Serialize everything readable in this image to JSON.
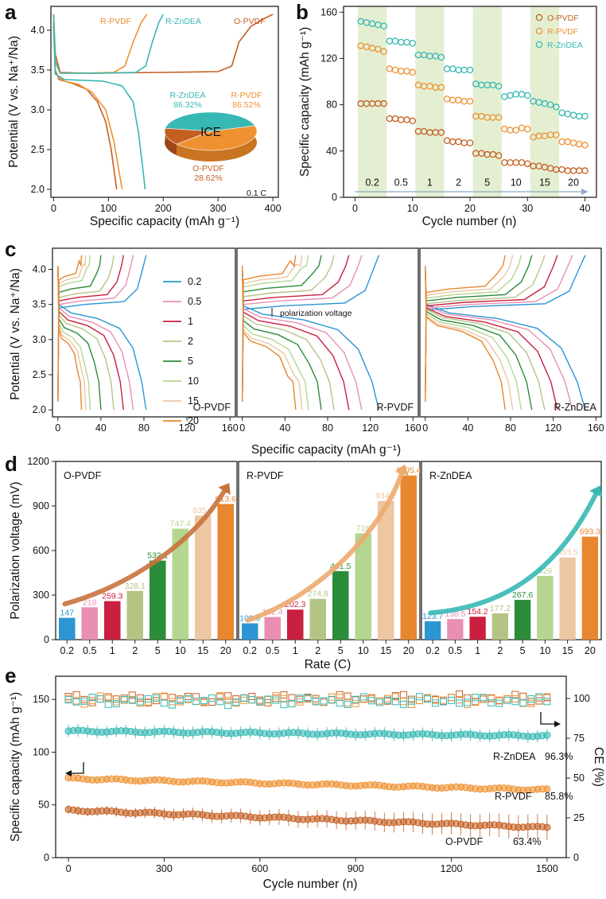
{
  "colors": {
    "o": "#c45f22",
    "r": "#ef9131",
    "z": "#37b8b4",
    "band": "#e4efd2",
    "rate": [
      "#2c95d4",
      "#e88fb3",
      "#c9203f",
      "#b4c485",
      "#2b8c3a",
      "#b4d690",
      "#edc6a2",
      "#e98630",
      "#c3c2e7"
    ]
  },
  "panels": {
    "a": "a",
    "b": "b",
    "c": "c",
    "d": "d",
    "e": "e"
  },
  "chart_data": [
    {
      "id": "a",
      "type": "line",
      "xlabel": "Specific capacity (mAh g⁻¹)",
      "ylabel": "Potential (V vs. Na⁺/Na)",
      "xlim": [
        -5,
        410
      ],
      "ylim": [
        1.9,
        4.3
      ],
      "xticks": [
        0,
        100,
        200,
        300,
        400
      ],
      "yticks": [
        2.0,
        2.5,
        3.0,
        3.5,
        4.0
      ],
      "xticklabels": [
        "0",
        "100",
        "200",
        "300",
        "400"
      ],
      "yticklabels": [
        "2.0",
        "2.5",
        "3.0",
        "3.5",
        "4.0"
      ],
      "series": [
        {
          "name": "O-PVDF",
          "label": "O-PVDF",
          "color": "#c45f22",
          "charge": [
            [
              0,
              4.2
            ],
            [
              3,
              3.7
            ],
            [
              12,
              3.47
            ],
            [
              60,
              3.46
            ],
            [
              200,
              3.47
            ],
            [
              300,
              3.48
            ],
            [
              325,
              3.55
            ],
            [
              338,
              3.85
            ],
            [
              360,
              4.05
            ],
            [
              385,
              4.15
            ],
            [
              400,
              4.2
            ]
          ],
          "discharge": [
            [
              0,
              4.1
            ],
            [
              3,
              3.5
            ],
            [
              10,
              3.38
            ],
            [
              35,
              3.33
            ],
            [
              60,
              3.26
            ],
            [
              80,
              3.1
            ],
            [
              95,
              2.85
            ],
            [
              105,
              2.5
            ],
            [
              115,
              2.0
            ]
          ]
        },
        {
          "name": "R-PVDF",
          "label": "R-PVDF",
          "color": "#ef9131",
          "charge": [
            [
              0,
              4.2
            ],
            [
              3,
              3.62
            ],
            [
              12,
              3.46
            ],
            [
              60,
              3.46
            ],
            [
              110,
              3.47
            ],
            [
              130,
              3.55
            ],
            [
              145,
              3.85
            ],
            [
              160,
              4.1
            ],
            [
              170,
              4.2
            ]
          ],
          "discharge": [
            [
              0,
              4.05
            ],
            [
              3,
              3.45
            ],
            [
              20,
              3.36
            ],
            [
              45,
              3.32
            ],
            [
              70,
              3.22
            ],
            [
              95,
              3.0
            ],
            [
              110,
              2.6
            ],
            [
              120,
              2.2
            ],
            [
              125,
              2.0
            ]
          ]
        },
        {
          "name": "R-ZnDEA",
          "label": "R-ZnDEA",
          "color": "#37b8b4",
          "charge": [
            [
              0,
              4.2
            ],
            [
              3,
              3.6
            ],
            [
              12,
              3.46
            ],
            [
              80,
              3.46
            ],
            [
              150,
              3.47
            ],
            [
              168,
              3.55
            ],
            [
              180,
              3.85
            ],
            [
              192,
              4.1
            ],
            [
              200,
              4.2
            ]
          ],
          "discharge": [
            [
              0,
              4.05
            ],
            [
              3,
              3.45
            ],
            [
              20,
              3.38
            ],
            [
              90,
              3.36
            ],
            [
              125,
              3.3
            ],
            [
              145,
              3.1
            ],
            [
              155,
              2.7
            ],
            [
              162,
              2.3
            ],
            [
              167,
              2.0
            ]
          ]
        }
      ],
      "pie": {
        "title": "ICE",
        "slices": [
          {
            "name": "R-ZnDEA",
            "value": 86.32,
            "label": "R-ZnDEA",
            "pct": "86.32%",
            "color": "#37b8b4"
          },
          {
            "name": "R-PVDF",
            "value": 86.52,
            "label": "R-PVDF",
            "pct": "86.52%",
            "color": "#ef9131"
          },
          {
            "name": "O-PVDF",
            "value": 28.62,
            "label": "O-PVDF",
            "pct": "28.62%",
            "color": "#c45f22"
          }
        ]
      },
      "annotation": "0.1 C"
    },
    {
      "id": "b",
      "type": "scatter",
      "xlabel": "Cycle number (n)",
      "ylabel": "Specific capacity (mAh g⁻¹)",
      "xlim": [
        -2,
        42
      ],
      "ylim": [
        0,
        165
      ],
      "xticks": [
        0,
        10,
        20,
        30,
        40
      ],
      "yticks": [
        0,
        40,
        80,
        120,
        160
      ],
      "xticklabels": [
        "0",
        "10",
        "20",
        "30",
        "40"
      ],
      "yticklabels": [
        "0",
        "40",
        "80",
        "120",
        "160"
      ],
      "rates": [
        "0.2",
        "0.5",
        "1",
        "2",
        "5",
        "10",
        "15",
        "20"
      ],
      "bands": [
        [
          0.5,
          5.5
        ],
        [
          10.5,
          15.5
        ],
        [
          20.5,
          25.5
        ],
        [
          30.5,
          35.5
        ]
      ],
      "series": [
        {
          "name": "O-PVDF",
          "label": "O-PVDF",
          "color": "#c45f22",
          "blocks": [
            [
              81,
              81,
              81,
              81,
              81
            ],
            [
              68,
              68,
              67,
              67,
              66
            ],
            [
              57,
              57,
              56,
              56,
              56
            ],
            [
              49,
              48,
              48,
              47,
              47
            ],
            [
              38,
              38,
              37,
              37,
              36
            ],
            [
              30,
              30,
              30,
              30,
              29
            ],
            [
              27,
              27,
              26,
              25,
              24
            ],
            [
              24,
              23,
              23,
              23,
              23
            ]
          ]
        },
        {
          "name": "R-PVDF",
          "label": "R-PVDF",
          "color": "#ef9131",
          "blocks": [
            [
              131,
              130,
              129,
              128,
              126
            ],
            [
              111,
              110,
              109,
              109,
              108
            ],
            [
              97,
              96,
              96,
              95,
              95
            ],
            [
              85,
              84,
              84,
              83,
              83
            ],
            [
              70,
              70,
              69,
              69,
              69
            ],
            [
              59,
              58,
              58,
              60,
              59
            ],
            [
              52,
              53,
              53,
              54,
              54
            ],
            [
              48,
              48,
              47,
              46,
              45
            ]
          ]
        },
        {
          "name": "R-ZnDEA",
          "label": "R-ZnDEA",
          "color": "#37b8b4",
          "blocks": [
            [
              152,
              151,
              150,
              149,
              148
            ],
            [
              135,
              135,
              134,
              134,
              133
            ],
            [
              123,
              123,
              122,
              122,
              121
            ],
            [
              111,
              111,
              110,
              110,
              110
            ],
            [
              98,
              97,
              97,
              97,
              96
            ],
            [
              87,
              88,
              89,
              89,
              88
            ],
            [
              83,
              82,
              81,
              80,
              78
            ],
            [
              73,
              72,
              71,
              70,
              70
            ]
          ]
        }
      ]
    },
    {
      "id": "c",
      "type": "line",
      "xlabel": "Specific capacity (mAh g⁻¹)",
      "ylabel": "Potential (V vs. Na⁺/Na)",
      "xlim": [
        -5,
        165
      ],
      "ylim": [
        1.9,
        4.3
      ],
      "xticks": [
        0,
        40,
        80,
        120,
        160
      ],
      "yticks": [
        2.0,
        2.5,
        3.0,
        3.5,
        4.0
      ],
      "xticklabels": [
        "0",
        "40",
        "80",
        "120",
        "160"
      ],
      "yticklabels": [
        "2.0",
        "2.5",
        "3.0",
        "3.5",
        "4.0"
      ],
      "rates": [
        "0.2",
        "0.5",
        "1",
        "2",
        "5",
        "10",
        "15",
        "20"
      ],
      "annotation": "polarization voltage",
      "subplots": [
        {
          "name": "O-PVDF",
          "label": "O-PVDF",
          "caps": [
            82,
            70,
            61,
            52,
            40,
            30,
            26,
            22
          ],
          "platD": [
            3.38,
            3.33,
            3.28,
            3.23,
            3.17,
            3.11,
            3.06,
            3.02
          ],
          "platC": [
            3.5,
            3.55,
            3.6,
            3.65,
            3.72,
            3.8,
            3.85,
            3.9
          ]
        },
        {
          "name": "R-PVDF",
          "label": "R-PVDF",
          "caps": [
            128,
            112,
            100,
            86,
            74,
            62,
            56,
            50
          ],
          "platD": [
            3.36,
            3.32,
            3.27,
            3.22,
            3.15,
            3.08,
            3.02,
            2.98
          ],
          "platC": [
            3.48,
            3.55,
            3.6,
            3.66,
            3.73,
            3.8,
            3.85,
            3.9
          ]
        },
        {
          "name": "R-ZnDEA",
          "label": "R-ZnDEA",
          "caps": [
            150,
            138,
            124,
            112,
            100,
            90,
            82,
            75
          ],
          "platD": [
            3.38,
            3.36,
            3.33,
            3.31,
            3.28,
            3.25,
            3.22,
            3.2
          ],
          "platC": [
            3.47,
            3.5,
            3.53,
            3.56,
            3.6,
            3.64,
            3.68,
            3.72
          ]
        }
      ]
    },
    {
      "id": "d",
      "type": "bar",
      "xlabel": "Rate (C)",
      "ylabel": "Polarization voltage (mV)",
      "ylim": [
        0,
        1200
      ],
      "yticks": [
        0,
        300,
        600,
        900,
        1200
      ],
      "yticklabels": [
        "0",
        "300",
        "600",
        "900",
        "1200"
      ],
      "categories": [
        "0.2",
        "0.5",
        "1",
        "2",
        "5",
        "10",
        "15",
        "20"
      ],
      "series": [
        {
          "name": "O-PVDF",
          "label": "O-PVDF",
          "values": [
            147,
            218,
            259.3,
            328.1,
            532.1,
            747.4,
            835.4,
            913.6
          ],
          "valueLabels": [
            "147",
            "218",
            "259.3",
            "328.1",
            "532.1",
            "747.4",
            "835.4",
            "913.6"
          ]
        },
        {
          "name": "R-PVDF",
          "label": "R-PVDF",
          "values": [
            109.6,
            152.4,
            202.3,
            274.8,
            461.5,
            716,
            934.2,
            1105.4
          ],
          "valueLabels": [
            "109.6",
            "152.4",
            "202.3",
            "274.8",
            "461.5",
            "716",
            "934.2",
            "1105.4"
          ]
        },
        {
          "name": "R-ZnDEA",
          "label": "R-ZnDEA",
          "values": [
            123.7,
            138.5,
            154.2,
            177.2,
            267.6,
            429,
            553.5,
            693.3
          ],
          "valueLabels": [
            "123.7",
            "138.5",
            "154.2",
            "177.2",
            "267.6",
            "429",
            "553.5",
            "693.3"
          ]
        }
      ]
    },
    {
      "id": "e",
      "type": "scatter",
      "xlabel": "Cycle number (n)",
      "ylabel": "Specific capacity (mAh g⁻¹)",
      "ylabel2": "CE (%)",
      "xlim": [
        -40,
        1560
      ],
      "ylim": [
        0,
        172
      ],
      "y2lim": [
        0,
        114
      ],
      "xticks": [
        0,
        300,
        600,
        900,
        1200,
        1500
      ],
      "xticklabels": [
        "0",
        "300",
        "600",
        "900",
        "1200",
        "1500"
      ],
      "yticks": [
        0,
        50,
        100,
        150
      ],
      "yticklabels": [
        "0",
        "50",
        "100",
        "150"
      ],
      "y2ticks": [
        0,
        25,
        50,
        75,
        100
      ],
      "y2ticklabels": [
        "0",
        "25",
        "50",
        "75",
        "100"
      ],
      "series": [
        {
          "name": "R-ZnDEA",
          "label": "R-ZnDEA",
          "retention": "96.3%",
          "start": 120,
          "end": 115.5,
          "err": 6,
          "ce": 98.5,
          "color": "#37b8b4"
        },
        {
          "name": "R-PVDF",
          "label": "R-PVDF",
          "retention": "85.8%",
          "start": 75,
          "end": 64.3,
          "err": 3,
          "ce": 99,
          "color": "#ef9131"
        },
        {
          "name": "O-PVDF",
          "label": "O-PVDF",
          "retention": "63.4%",
          "start": 45,
          "end": 28.5,
          "err": 8,
          "ce": 100,
          "color": "#c45f22"
        }
      ]
    }
  ]
}
